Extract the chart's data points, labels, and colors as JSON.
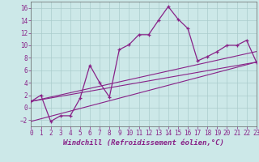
{
  "xlabel": "Windchill (Refroidissement éolien,°C)",
  "background_color": "#cce8e8",
  "line_color": "#882288",
  "xlim": [
    0,
    23
  ],
  "ylim": [
    -3,
    17
  ],
  "xticks": [
    0,
    1,
    2,
    3,
    4,
    5,
    6,
    7,
    8,
    9,
    10,
    11,
    12,
    13,
    14,
    15,
    16,
    17,
    18,
    19,
    20,
    21,
    22,
    23
  ],
  "yticks": [
    -2,
    0,
    2,
    4,
    6,
    8,
    10,
    12,
    14,
    16
  ],
  "series1_x": [
    0,
    1,
    2,
    3,
    4,
    5,
    6,
    7,
    8,
    9,
    10,
    11,
    12,
    13,
    14,
    15,
    16,
    17,
    18,
    19,
    20,
    21,
    22,
    23
  ],
  "series1_y": [
    1,
    2,
    -2.2,
    -1.3,
    -1.3,
    1.5,
    6.8,
    4.0,
    1.7,
    9.3,
    10.1,
    11.7,
    11.7,
    14.0,
    16.2,
    14.2,
    12.7,
    7.5,
    8.2,
    9.0,
    10.0,
    10.0,
    10.8,
    7.3
  ],
  "series2_x": [
    0,
    23
  ],
  "series2_y": [
    1.0,
    7.3
  ],
  "series3_x": [
    0,
    23
  ],
  "series3_y": [
    -2.2,
    7.3
  ],
  "series4_x": [
    0,
    23
  ],
  "series4_y": [
    1.0,
    9.0
  ],
  "grid_color": "#aacccc",
  "spine_color": "#666666",
  "tick_color": "#882288",
  "xlabel_fontsize": 6.5,
  "tick_fontsize": 5.5
}
